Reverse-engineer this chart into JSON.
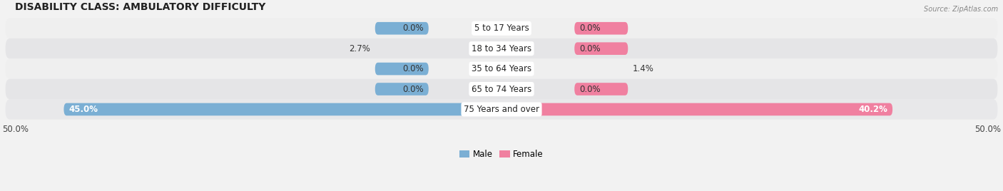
{
  "title": "DISABILITY CLASS: AMBULATORY DIFFICULTY",
  "source": "Source: ZipAtlas.com",
  "categories": [
    "5 to 17 Years",
    "18 to 34 Years",
    "35 to 64 Years",
    "65 to 74 Years",
    "75 Years and over"
  ],
  "male_values": [
    0.0,
    2.7,
    0.0,
    0.0,
    45.0
  ],
  "female_values": [
    0.0,
    0.0,
    1.4,
    0.0,
    40.2
  ],
  "x_max": 50.0,
  "male_color": "#7bafd4",
  "female_color": "#f080a0",
  "row_colors": [
    "#efefef",
    "#e5e5e7",
    "#efefef",
    "#e5e5e7",
    "#e8e8ea"
  ],
  "label_color": "#555555",
  "title_fontsize": 10,
  "label_fontsize": 8.5,
  "tick_fontsize": 8.5,
  "bar_height": 0.62,
  "background_color": "#f2f2f2"
}
